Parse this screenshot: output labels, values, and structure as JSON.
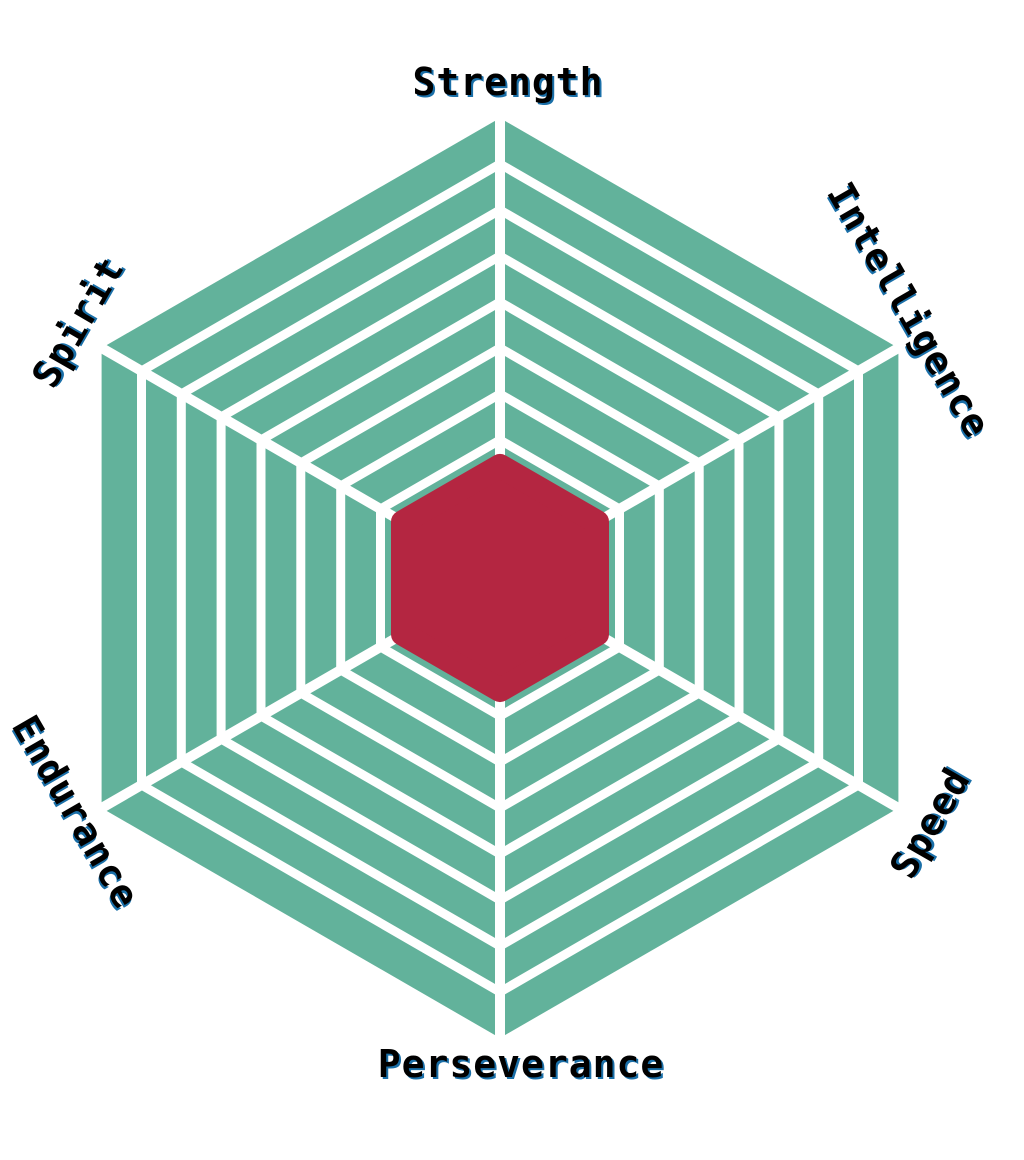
{
  "stats": {
    "axes": [
      {
        "key": "strength",
        "label": "Strength",
        "value": 2
      },
      {
        "key": "intelligence",
        "label": "Intelligence",
        "value": 2
      },
      {
        "key": "speed",
        "label": "Speed",
        "value": 2
      },
      {
        "key": "perseverance",
        "label": "Perseverance",
        "value": 2
      },
      {
        "key": "endurance",
        "label": "Endurance",
        "value": 2
      },
      {
        "key": "spirit",
        "label": "Spirit",
        "value": 2
      }
    ],
    "max_level": 10
  },
  "colors": {
    "ring": "#62b29b",
    "divider": "#ffffff",
    "stat_fill": "#b42641",
    "label_text": "#000000",
    "label_accent": "#1a6fa8",
    "background": "#ffffff"
  }
}
